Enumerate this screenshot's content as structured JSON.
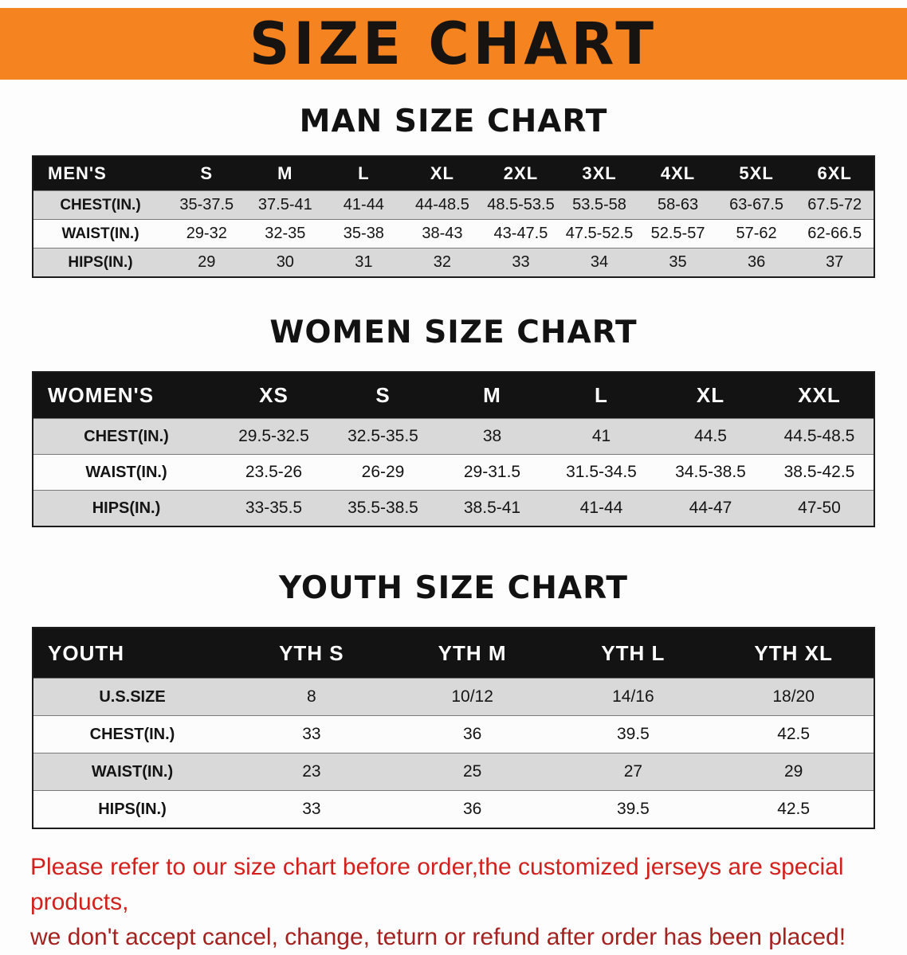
{
  "banner": {
    "title": "SIZE CHART",
    "bg_color": "#f5831f"
  },
  "sections": [
    {
      "heading": "MAN SIZE CHART",
      "table": {
        "header": [
          "MEN'S",
          "S",
          "M",
          "L",
          "XL",
          "2XL",
          "3XL",
          "4XL",
          "5XL",
          "6XL"
        ],
        "rows": [
          [
            "CHEST(IN.)",
            "35-37.5",
            "37.5-41",
            "41-44",
            "44-48.5",
            "48.5-53.5",
            "53.5-58",
            "58-63",
            "63-67.5",
            "67.5-72"
          ],
          [
            "WAIST(IN.)",
            "29-32",
            "32-35",
            "35-38",
            "38-43",
            "43-47.5",
            "47.5-52.5",
            "52.5-57",
            "57-62",
            "62-66.5"
          ],
          [
            "HIPS(IN.)",
            "29",
            "30",
            "31",
            "32",
            "33",
            "34",
            "35",
            "36",
            "37"
          ]
        ]
      }
    },
    {
      "heading": "WOMEN SIZE CHART",
      "table": {
        "header": [
          "WOMEN'S",
          "XS",
          "S",
          "M",
          "L",
          "XL",
          "XXL"
        ],
        "rows": [
          [
            "CHEST(IN.)",
            "29.5-32.5",
            "32.5-35.5",
            "38",
            "41",
            "44.5",
            "44.5-48.5"
          ],
          [
            "WAIST(IN.)",
            "23.5-26",
            "26-29",
            "29-31.5",
            "31.5-34.5",
            "34.5-38.5",
            "38.5-42.5"
          ],
          [
            "HIPS(IN.)",
            "33-35.5",
            "35.5-38.5",
            "38.5-41",
            "41-44",
            "44-47",
            "47-50"
          ]
        ]
      }
    },
    {
      "heading": "YOUTH SIZE CHART",
      "table": {
        "header": [
          "YOUTH",
          "YTH S",
          "YTH M",
          "YTH L",
          "YTH XL"
        ],
        "rows": [
          [
            "U.S.SIZE",
            "8",
            "10/12",
            "14/16",
            "18/20"
          ],
          [
            "CHEST(IN.)",
            "33",
            "36",
            "39.5",
            "42.5"
          ],
          [
            "WAIST(IN.)",
            "23",
            "25",
            "27",
            "29"
          ],
          [
            "HIPS(IN.)",
            "33",
            "36",
            "39.5",
            "42.5"
          ]
        ]
      }
    }
  ],
  "footer": {
    "line1": "Please refer to our size chart before order,the customized jerseys are special products,",
    "line2": "we don't accept cancel, change, teturn or refund after order has been placed!",
    "text_color_line1": "#d2211d",
    "text_color_line2": "#a32220"
  },
  "colors": {
    "banner_orange": "#f5831f",
    "table_header_black": "#131313",
    "row_stripe_gray": "#d9d9d9"
  }
}
